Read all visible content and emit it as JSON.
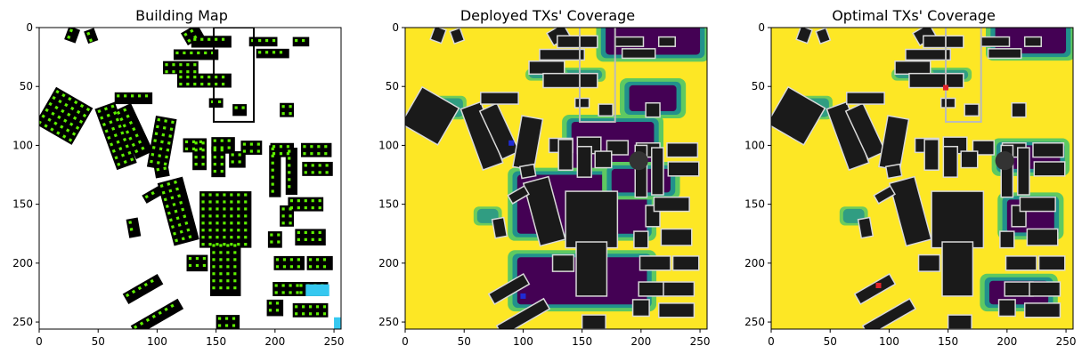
{
  "chart_data": [
    {
      "type": "heatmap",
      "title": "Building Map",
      "xlim": [
        0,
        256
      ],
      "ylim": [
        256,
        0
      ],
      "xticks": [
        0,
        50,
        100,
        150,
        200,
        250
      ],
      "yticks": [
        0,
        50,
        100,
        150,
        200,
        250
      ],
      "colors": {
        "background": "#ffffff",
        "building": "#000000",
        "marker": "#5ef000",
        "accent": "#35c8f0"
      }
    },
    {
      "type": "heatmap",
      "title": "Deployed TXs' Coverage",
      "xlim": [
        0,
        256
      ],
      "ylim": [
        256,
        0
      ],
      "xticks": [
        0,
        50,
        100,
        150,
        200,
        250
      ],
      "yticks": [
        0,
        50,
        100,
        150,
        200,
        250
      ],
      "transmitters": [
        {
          "x": 90,
          "y": 98
        },
        {
          "x": 100,
          "y": 228
        }
      ],
      "colors": {
        "high": "#fde725",
        "mid_high": "#5ec962",
        "mid": "#21918c",
        "low": "#440154",
        "building": "#1a1a1a",
        "tx": "#1f2bd6"
      }
    },
    {
      "type": "heatmap",
      "title": "Optimal TXs' Coverage",
      "xlim": [
        0,
        256
      ],
      "ylim": [
        256,
        0
      ],
      "xticks": [
        0,
        50,
        100,
        150,
        200,
        250
      ],
      "yticks": [
        0,
        50,
        100,
        150,
        200,
        250
      ],
      "transmitters": [
        {
          "x": 148,
          "y": 51
        },
        {
          "x": 91,
          "y": 219
        }
      ],
      "colors": {
        "high": "#fde725",
        "mid_high": "#5ec962",
        "mid": "#21918c",
        "low": "#440154",
        "building": "#1a1a1a",
        "tx": "#e0242a"
      }
    }
  ]
}
